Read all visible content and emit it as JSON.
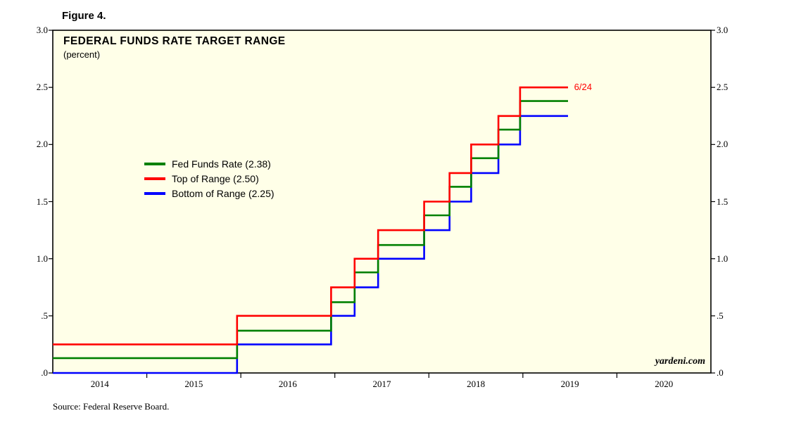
{
  "page": {
    "figure_label": "Figure 4."
  },
  "colors": {
    "plot_bg": "#ffffe8",
    "axis": "#000000"
  },
  "header": {
    "title": "FEDERAL FUNDS RATE TARGET RANGE",
    "subtitle": "(percent)"
  },
  "footer": {
    "source": "Source: Federal Reserve Board.",
    "watermark": "yardeni.com"
  },
  "chart_data": {
    "type": "line",
    "title": "FEDERAL FUNDS RATE TARGET RANGE",
    "subtitle": "(percent)",
    "xlabel": "",
    "ylabel": "percent",
    "x_range": [
      2014.0,
      2021.0
    ],
    "y_range": [
      0.0,
      3.0
    ],
    "grid": false,
    "legend_position": "inside-left",
    "y_ticks": [
      {
        "label": "3.0",
        "value": 3.0
      },
      {
        "label": "2.5",
        "value": 2.5
      },
      {
        "label": "2.0",
        "value": 2.0
      },
      {
        "label": "1.5",
        "value": 1.5
      },
      {
        "label": "1.0",
        "value": 1.0
      },
      {
        "label": ".5",
        "value": 0.5
      },
      {
        "label": ".0",
        "value": 0.0
      }
    ],
    "x_ticks": [
      {
        "label": "2014",
        "value": 2014.5
      },
      {
        "label": "2015",
        "value": 2015.5
      },
      {
        "label": "2016",
        "value": 2016.5
      },
      {
        "label": "2017",
        "value": 2017.5
      },
      {
        "label": "2018",
        "value": 2018.5
      },
      {
        "label": "2019",
        "value": 2019.5
      },
      {
        "label": "2020",
        "value": 2020.5
      }
    ],
    "x_boundary_ticks": [
      2015,
      2016,
      2017,
      2018,
      2019,
      2020
    ],
    "series": [
      {
        "name": "Fed Funds Rate (2.38)",
        "color": "#008000",
        "end_x": 2019.48,
        "points": [
          [
            2014.0,
            0.13
          ],
          [
            2015.96,
            0.37
          ],
          [
            2016.96,
            0.62
          ],
          [
            2017.21,
            0.88
          ],
          [
            2017.46,
            1.12
          ],
          [
            2017.95,
            1.38
          ],
          [
            2018.22,
            1.63
          ],
          [
            2018.45,
            1.88
          ],
          [
            2018.74,
            2.13
          ],
          [
            2018.97,
            2.38
          ]
        ]
      },
      {
        "name": "Top of Range (2.50)",
        "color": "#ff0000",
        "end_x": 2019.48,
        "points": [
          [
            2014.0,
            0.25
          ],
          [
            2015.96,
            0.5
          ],
          [
            2016.96,
            0.75
          ],
          [
            2017.21,
            1.0
          ],
          [
            2017.46,
            1.25
          ],
          [
            2017.95,
            1.5
          ],
          [
            2018.22,
            1.75
          ],
          [
            2018.45,
            2.0
          ],
          [
            2018.74,
            2.25
          ],
          [
            2018.97,
            2.5
          ]
        ]
      },
      {
        "name": "Bottom of Range (2.25)",
        "color": "#0000ff",
        "end_x": 2019.48,
        "points": [
          [
            2014.0,
            0.0
          ],
          [
            2015.96,
            0.25
          ],
          [
            2016.96,
            0.5
          ],
          [
            2017.21,
            0.75
          ],
          [
            2017.46,
            1.0
          ],
          [
            2017.95,
            1.25
          ],
          [
            2018.22,
            1.5
          ],
          [
            2018.45,
            1.75
          ],
          [
            2018.74,
            2.0
          ],
          [
            2018.97,
            2.25
          ]
        ]
      }
    ],
    "annotation": {
      "text": "6/24",
      "color": "#ff0000",
      "x": 2019.5,
      "y": 2.5
    }
  }
}
